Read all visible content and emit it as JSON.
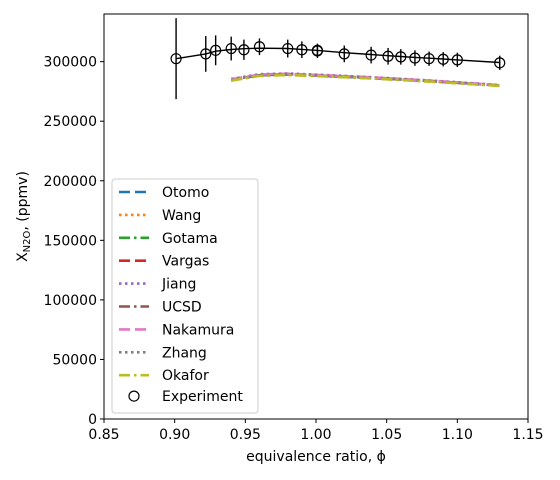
{
  "chart_data": {
    "type": "line",
    "title": "",
    "xlabel": "equivalence ratio, ϕ",
    "ylabel_main": "X",
    "ylabel_sub": "N2O",
    "ylabel_unit": ", (ppmv)",
    "xlim": [
      0.85,
      1.15
    ],
    "ylim": [
      0,
      340000
    ],
    "xticks": [
      0.85,
      0.9,
      0.95,
      1.0,
      1.05,
      1.1,
      1.15
    ],
    "xtick_labels": [
      "0.85",
      "0.90",
      "0.95",
      "1.00",
      "1.05",
      "1.10",
      "1.15"
    ],
    "yticks": [
      0,
      50000,
      100000,
      150000,
      200000,
      250000,
      300000
    ],
    "ytick_labels": [
      "0",
      "50000",
      "100000",
      "150000",
      "200000",
      "250000",
      "300000"
    ],
    "grid": false,
    "legend_position": "lower-left",
    "series": [
      {
        "name": "Otomo",
        "color": "#1f77b4",
        "dash": "dashed",
        "x": [
          0.94,
          0.96,
          0.98,
          1.0,
          1.03,
          1.06,
          1.09,
          1.13
        ],
        "y": [
          284500,
          288500,
          289300,
          288300,
          286800,
          285000,
          283000,
          280000
        ]
      },
      {
        "name": "Wang",
        "color": "#ff7f0e",
        "dash": "dotted",
        "x": [
          0.94,
          0.96,
          0.98,
          1.0,
          1.03,
          1.06,
          1.09,
          1.13
        ],
        "y": [
          285000,
          289000,
          289700,
          288800,
          287300,
          285400,
          283300,
          280300
        ]
      },
      {
        "name": "Gotama",
        "color": "#2ca02c",
        "dash": "dashdot",
        "x": [
          0.94,
          0.96,
          0.98,
          1.0,
          1.03,
          1.06,
          1.09,
          1.13
        ],
        "y": [
          284300,
          288200,
          289000,
          288100,
          286500,
          284700,
          282700,
          279700
        ]
      },
      {
        "name": "Vargas",
        "color": "#d62728",
        "dash": "dashed",
        "x": [
          0.94,
          0.96,
          0.98,
          1.0,
          1.03,
          1.06,
          1.09,
          1.13
        ],
        "y": [
          284800,
          288800,
          289500,
          288500,
          287000,
          285200,
          283100,
          280100
        ]
      },
      {
        "name": "Jiang",
        "color": "#9467bd",
        "dash": "dotted",
        "x": [
          0.94,
          0.96,
          0.98,
          1.0,
          1.03,
          1.06,
          1.09,
          1.13
        ],
        "y": [
          285500,
          289500,
          290100,
          289100,
          287500,
          285600,
          283500,
          280400
        ]
      },
      {
        "name": "UCSD",
        "color": "#8c564b",
        "dash": "dashdot",
        "x": [
          0.94,
          0.96,
          0.98,
          1.0,
          1.03,
          1.06,
          1.09,
          1.13
        ],
        "y": [
          284600,
          288600,
          289400,
          288400,
          286900,
          285100,
          283000,
          280000
        ]
      },
      {
        "name": "Nakamura",
        "color": "#e377c2",
        "dash": "dashed",
        "x": [
          0.94,
          0.96,
          0.98,
          1.0,
          1.03,
          1.06,
          1.09,
          1.13
        ],
        "y": [
          285200,
          289200,
          289900,
          288900,
          287400,
          285500,
          283400,
          280300
        ]
      },
      {
        "name": "Zhang",
        "color": "#7f7f7f",
        "dash": "dotted",
        "x": [
          0.94,
          0.96,
          0.98,
          1.0,
          1.03,
          1.06,
          1.09,
          1.13
        ],
        "y": [
          284700,
          288700,
          289500,
          288500,
          286900,
          285100,
          283000,
          280000
        ]
      },
      {
        "name": "Okafor",
        "color": "#bcbd22",
        "dash": "dashdot",
        "x": [
          0.94,
          0.96,
          0.98,
          1.0,
          1.03,
          1.06,
          1.09,
          1.13
        ],
        "y": [
          284000,
          288000,
          288800,
          287900,
          286400,
          284600,
          282600,
          279600
        ]
      }
    ],
    "experiment": {
      "name": "Experiment",
      "color": "#000000",
      "x": [
        0.901,
        0.922,
        0.929,
        0.94,
        0.949,
        0.96,
        0.98,
        0.99,
        1.001,
        1.001,
        1.02,
        1.039,
        1.051,
        1.06,
        1.07,
        1.08,
        1.09,
        1.1,
        1.13
      ],
      "y": [
        302500,
        306500,
        309500,
        311000,
        310000,
        312500,
        311000,
        310000,
        309000,
        309500,
        306500,
        305500,
        304500,
        304000,
        303000,
        302500,
        302000,
        301500,
        299000
      ],
      "yerr": [
        34000,
        15000,
        12500,
        10000,
        8500,
        7000,
        7500,
        7000,
        6000,
        5500,
        7000,
        7000,
        7000,
        6500,
        6500,
        6000,
        6000,
        6000,
        6000
      ]
    },
    "experiment_fit": {
      "x": [
        0.901,
        0.922,
        0.929,
        0.94,
        0.949,
        0.96,
        0.98,
        0.99,
        1.0,
        1.02,
        1.039,
        1.051,
        1.06,
        1.07,
        1.08,
        1.09,
        1.1,
        1.13
      ],
      "y": [
        302500,
        306500,
        308800,
        310200,
        310900,
        311300,
        311000,
        310300,
        309500,
        307500,
        306000,
        305000,
        304300,
        303600,
        302900,
        302200,
        301500,
        299300
      ]
    }
  }
}
